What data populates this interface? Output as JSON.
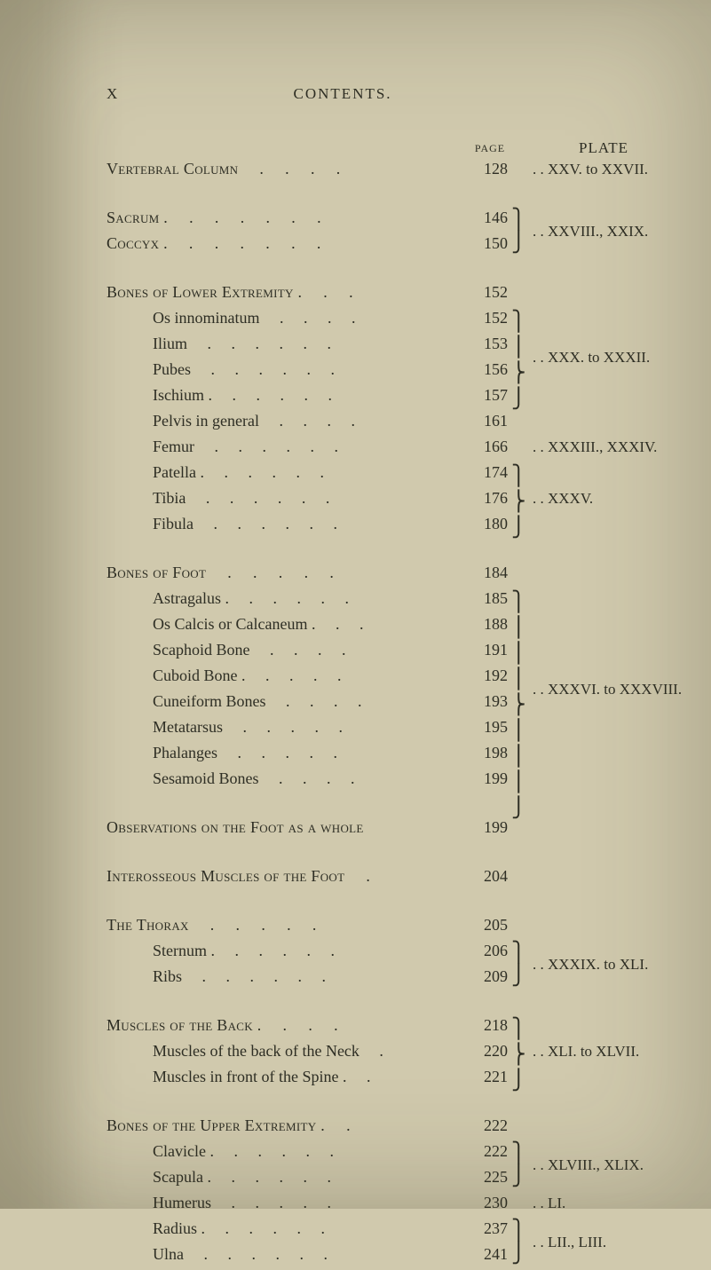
{
  "colors": {
    "paper": "#d0c9ad",
    "ink": "#2e2e24"
  },
  "typography": {
    "body_font": "Times New Roman / Century Schoolbook",
    "body_size_pt": 12,
    "running_head_size_pt": 11,
    "small_caps_for_major_headings": true
  },
  "running_head": {
    "left": "X",
    "title": "CONTENTS."
  },
  "column_heads": {
    "page": "PAGE",
    "plate": "PLATE"
  },
  "rows": [
    {
      "name": "Vertebral Column",
      "caps": true,
      "indent": 0,
      "dots": 4,
      "page": "128",
      "plate": ". . XXV. to XXVII.",
      "gap_before": false
    },
    {
      "name": "Sacrum .",
      "caps": true,
      "indent": 0,
      "dots": 6,
      "page": "146",
      "brace2_top": true,
      "gap_before": true
    },
    {
      "name": "Coccyx .",
      "caps": true,
      "indent": 0,
      "dots": 6,
      "page": "150",
      "plate": ". . XXVIII., XXIX.",
      "plate_shift_up_half": true
    },
    {
      "name": "Bones of Lower Extremity .",
      "caps": true,
      "indent": 0,
      "dots": 2,
      "page": "152",
      "gap_before": true
    },
    {
      "name": "Os innominatum",
      "indent": 1,
      "dots": 4,
      "page": "152",
      "brace4_top": true
    },
    {
      "name": "Ilium",
      "indent": 1,
      "dots": 6,
      "page": "153"
    },
    {
      "name": "Pubes",
      "indent": 1,
      "dots": 6,
      "page": "156",
      "plate": ". . XXX. to XXXII.",
      "plate_shift_up_half": true
    },
    {
      "name": "Ischium .",
      "indent": 1,
      "dots": 5,
      "page": "157"
    },
    {
      "name": "Pelvis in general",
      "indent": 1,
      "dots": 4,
      "page": "161"
    },
    {
      "name": "Femur",
      "indent": 1,
      "dots": 6,
      "page": "166",
      "plate": ". . XXXIII., XXXIV."
    },
    {
      "name": "Patella .",
      "indent": 1,
      "dots": 5,
      "page": "174",
      "brace3_top": true
    },
    {
      "name": "Tibia",
      "indent": 1,
      "dots": 6,
      "page": "176",
      "plate": ". . XXXV."
    },
    {
      "name": "Fibula",
      "indent": 1,
      "dots": 6,
      "page": "180"
    },
    {
      "name": "Bones of Foot",
      "caps": true,
      "indent": 0,
      "dots": 5,
      "page": "184",
      "gap_before": true
    },
    {
      "name": "Astragalus .",
      "indent": 1,
      "dots": 5,
      "page": "185",
      "brace8_top": true
    },
    {
      "name": "Os Calcis or Calcaneum .",
      "indent": 1,
      "dots": 2,
      "page": "188"
    },
    {
      "name": "Scaphoid Bone",
      "indent": 1,
      "dots": 4,
      "page": "191"
    },
    {
      "name": "Cuboid Bone .",
      "indent": 1,
      "dots": 4,
      "page": "192"
    },
    {
      "name": "Cuneiform Bones",
      "indent": 1,
      "dots": 4,
      "page": "193",
      "plate": ". . XXXVI. to XXXVIII.",
      "plate_shift_up_half": true
    },
    {
      "name": "Metatarsus",
      "indent": 1,
      "dots": 5,
      "page": "195"
    },
    {
      "name": "Phalanges",
      "indent": 1,
      "dots": 5,
      "page": "198"
    },
    {
      "name": "Sesamoid Bones",
      "indent": 1,
      "dots": 4,
      "page": "199"
    },
    {
      "name": "Observations on the Foot as a whole",
      "caps": true,
      "indent": 0,
      "dots": 0,
      "page": "199",
      "gap_before": true
    },
    {
      "name": "Interosseous Muscles of the Foot",
      "caps": true,
      "indent": 0,
      "dots": 1,
      "page": "204",
      "gap_before": true
    },
    {
      "name": "The Thorax",
      "caps": true,
      "indent": 0,
      "dots": 5,
      "page": "205",
      "gap_before": true
    },
    {
      "name": "Sternum .",
      "indent": 1,
      "dots": 5,
      "page": "206",
      "brace2_top": true
    },
    {
      "name": "Ribs",
      "indent": 1,
      "dots": 6,
      "page": "209",
      "plate": ". . XXXIX. to XLI.",
      "plate_shift_up_half": true
    },
    {
      "name": "Muscles of the Back .",
      "caps": true,
      "indent": 0,
      "dots": 3,
      "page": "218",
      "brace3_top": true,
      "gap_before": true
    },
    {
      "name": "Muscles of the back of the Neck",
      "indent": 1,
      "dots": 1,
      "page": "220",
      "plate": ". . XLI. to XLVII."
    },
    {
      "name": "Muscles in front of the Spine .",
      "indent": 1,
      "dots": 1,
      "page": "221"
    },
    {
      "name": "Bones of the Upper Extremity .",
      "caps": true,
      "indent": 0,
      "dots": 1,
      "page": "222",
      "gap_before": true
    },
    {
      "name": "Clavicle .",
      "indent": 1,
      "dots": 5,
      "page": "222",
      "brace2_top": true
    },
    {
      "name": "Scapula .",
      "indent": 1,
      "dots": 5,
      "page": "225",
      "plate": ". . XLVIII., XLIX.",
      "plate_shift_up_half": true
    },
    {
      "name": "Humerus",
      "indent": 1,
      "dots": 5,
      "page": "230",
      "plate": ". . LI."
    },
    {
      "name": "Radius .",
      "indent": 1,
      "dots": 5,
      "page": "237",
      "brace2_top": true
    },
    {
      "name": "Ulna",
      "indent": 1,
      "dots": 6,
      "page": "241",
      "plate": ". . LII., LIII.",
      "plate_shift_up_half": true
    }
  ],
  "braces": {
    "2": "⎫\n⎭",
    "3": "⎫\n⎬\n⎭",
    "4": "⎫\n⎪\n⎬\n⎭",
    "8": "⎫\n⎪\n⎪\n⎪\n⎬\n⎪\n⎪\n⎪\n⎭"
  }
}
